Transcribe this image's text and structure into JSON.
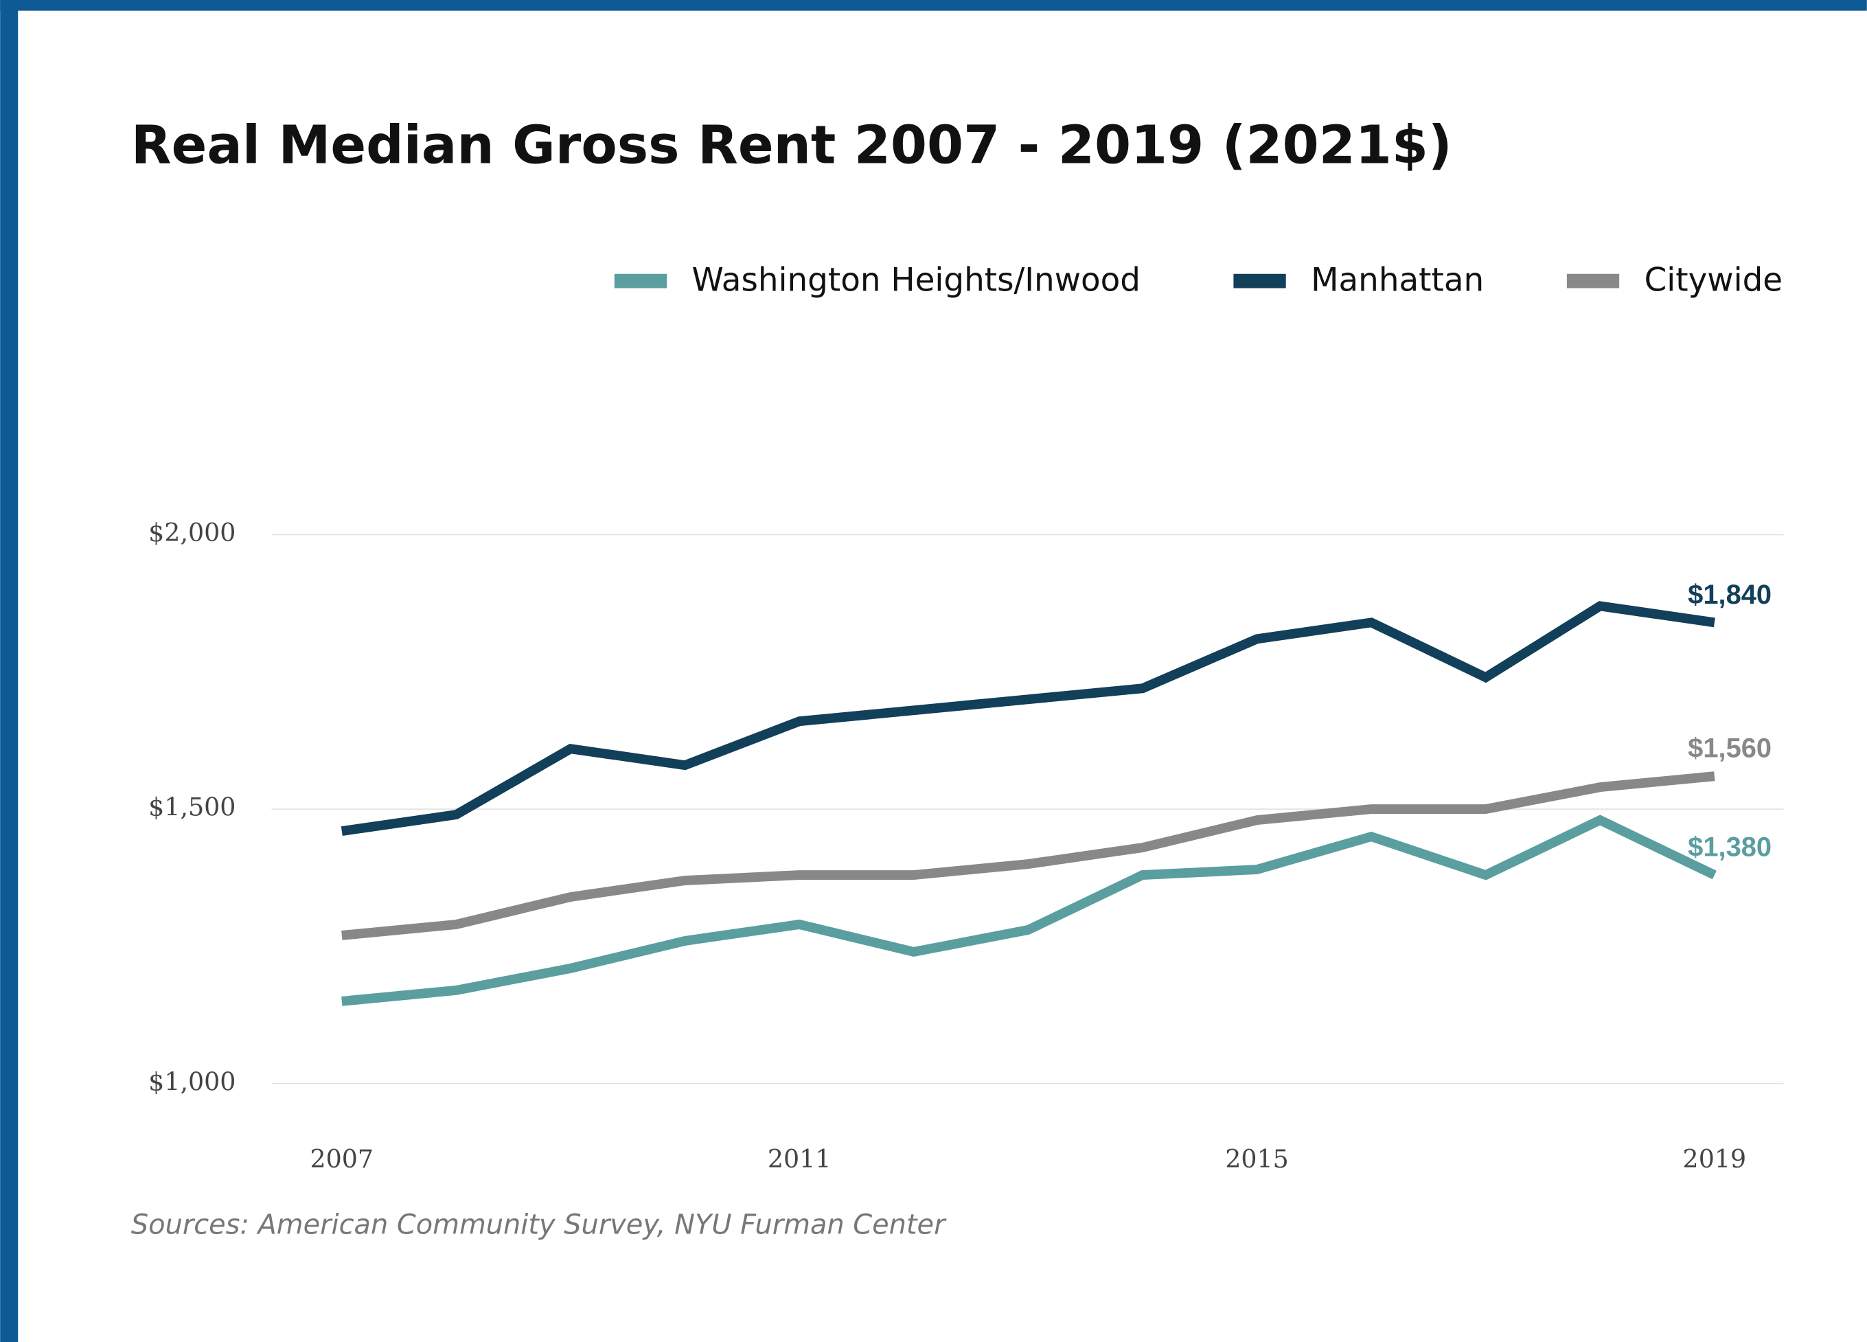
{
  "chart_data": {
    "type": "line",
    "title": "Real Median Gross Rent 2007 - 2019 (2021$)",
    "source": "Sources: American Community Survey, NYU Furman Center",
    "x": [
      2007,
      2008,
      2009,
      2010,
      2011,
      2012,
      2013,
      2014,
      2015,
      2016,
      2017,
      2018,
      2019
    ],
    "xlim": [
      2007,
      2019
    ],
    "xticks": [
      2007,
      2011,
      2015,
      2019
    ],
    "ylim": [
      1000,
      2000
    ],
    "yticks": [
      {
        "value": 1000,
        "label": "$1,000"
      },
      {
        "value": 1500,
        "label": "$1,500"
      },
      {
        "value": 2000,
        "label": "$2,000"
      }
    ],
    "grid": true,
    "legend": "top-right",
    "series": [
      {
        "name": "Washington Heights/Inwood",
        "color": "#5a9ea0",
        "values": [
          1150,
          1170,
          1210,
          1260,
          1290,
          1240,
          1280,
          1380,
          1390,
          1450,
          1380,
          1480,
          1380
        ],
        "value_labels": [
          null,
          null,
          null,
          null,
          null,
          null,
          null,
          null,
          null,
          null,
          null,
          null,
          "$1,380"
        ]
      },
      {
        "name": "Manhattan",
        "color": "#123f5a",
        "values": [
          1460,
          1490,
          1610,
          1580,
          1660,
          1680,
          1700,
          1720,
          1810,
          1840,
          1740,
          1870,
          1840
        ],
        "value_labels": [
          null,
          null,
          null,
          null,
          null,
          null,
          null,
          null,
          null,
          null,
          null,
          null,
          "$1,840"
        ]
      },
      {
        "name": "Citywide",
        "color": "#888888",
        "values": [
          1270,
          1290,
          1340,
          1370,
          1380,
          1380,
          1400,
          1430,
          1480,
          1500,
          1500,
          1540,
          1560
        ],
        "value_labels": [
          null,
          null,
          null,
          null,
          null,
          null,
          null,
          null,
          null,
          null,
          null,
          null,
          "$1,560"
        ]
      }
    ]
  }
}
